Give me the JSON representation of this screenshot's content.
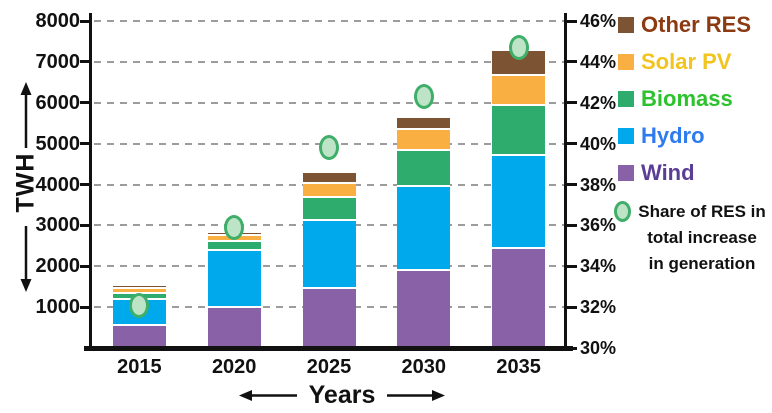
{
  "chart_data": {
    "type": "bar",
    "stacked": true,
    "title": "",
    "xlabel": "Years",
    "categories": [
      "2015",
      "2020",
      "2025",
      "2030",
      "2035"
    ],
    "series": [
      {
        "name": "Wind",
        "color": "#8961a7",
        "values": [
          540,
          990,
          1450,
          1880,
          2430
        ]
      },
      {
        "name": "Hydro",
        "color": "#00a9eb",
        "values": [
          630,
          1380,
          1650,
          2050,
          2260
        ]
      },
      {
        "name": "Biomass",
        "color": "#2eac6d",
        "values": [
          160,
          220,
          560,
          880,
          1230
        ]
      },
      {
        "name": "Solar PV",
        "color": "#f9af42",
        "values": [
          110,
          140,
          350,
          520,
          730
        ]
      },
      {
        "name": "Other RES",
        "color": "#7d5433",
        "values": [
          70,
          90,
          260,
          300,
          610
        ]
      }
    ],
    "totals": [
      1510,
      2820,
      4270,
      5630,
      7260
    ],
    "marker_series": {
      "name": "Share of RES in total increase in generation",
      "type": "scatter",
      "values_pct": [
        32.1,
        35.9,
        39.8,
        42.3,
        44.7
      ],
      "fill": "#bee4c8",
      "border": "#3fae68"
    },
    "left_axis": {
      "label": "TWH",
      "min": 0,
      "max": 8000,
      "tick_step": 1000,
      "ticks": [
        "1000",
        "2000",
        "3000",
        "4000",
        "5000",
        "6000",
        "7000",
        "8000"
      ]
    },
    "right_axis": {
      "min": 30,
      "max": 46,
      "tick_step": 2,
      "ticks": [
        "30%",
        "32%",
        "34%",
        "36%",
        "38%",
        "40%",
        "42%",
        "44%",
        "46%"
      ]
    },
    "grid": "dashed-horizontal",
    "legend_position": "right"
  },
  "legend": {
    "items": [
      {
        "label": "Other RES",
        "swatch": "#7d5433",
        "text_color": "#8b3a12"
      },
      {
        "label": "Solar PV",
        "swatch": "#f9af42",
        "text_color": "#f2c41e"
      },
      {
        "label": "Biomass",
        "swatch": "#2eac6d",
        "text_color": "#2cc22c"
      },
      {
        "label": "Hydro",
        "swatch": "#00a9eb",
        "text_color": "#2e7bf0"
      },
      {
        "label": "Wind",
        "swatch": "#8961a7",
        "text_color": "#5c3d94"
      }
    ],
    "share_item": {
      "line1": "Share of RES in",
      "line2": "total increase",
      "line3": "in generation"
    }
  },
  "axis_titles": {
    "y": "TWH",
    "x": "Years"
  }
}
